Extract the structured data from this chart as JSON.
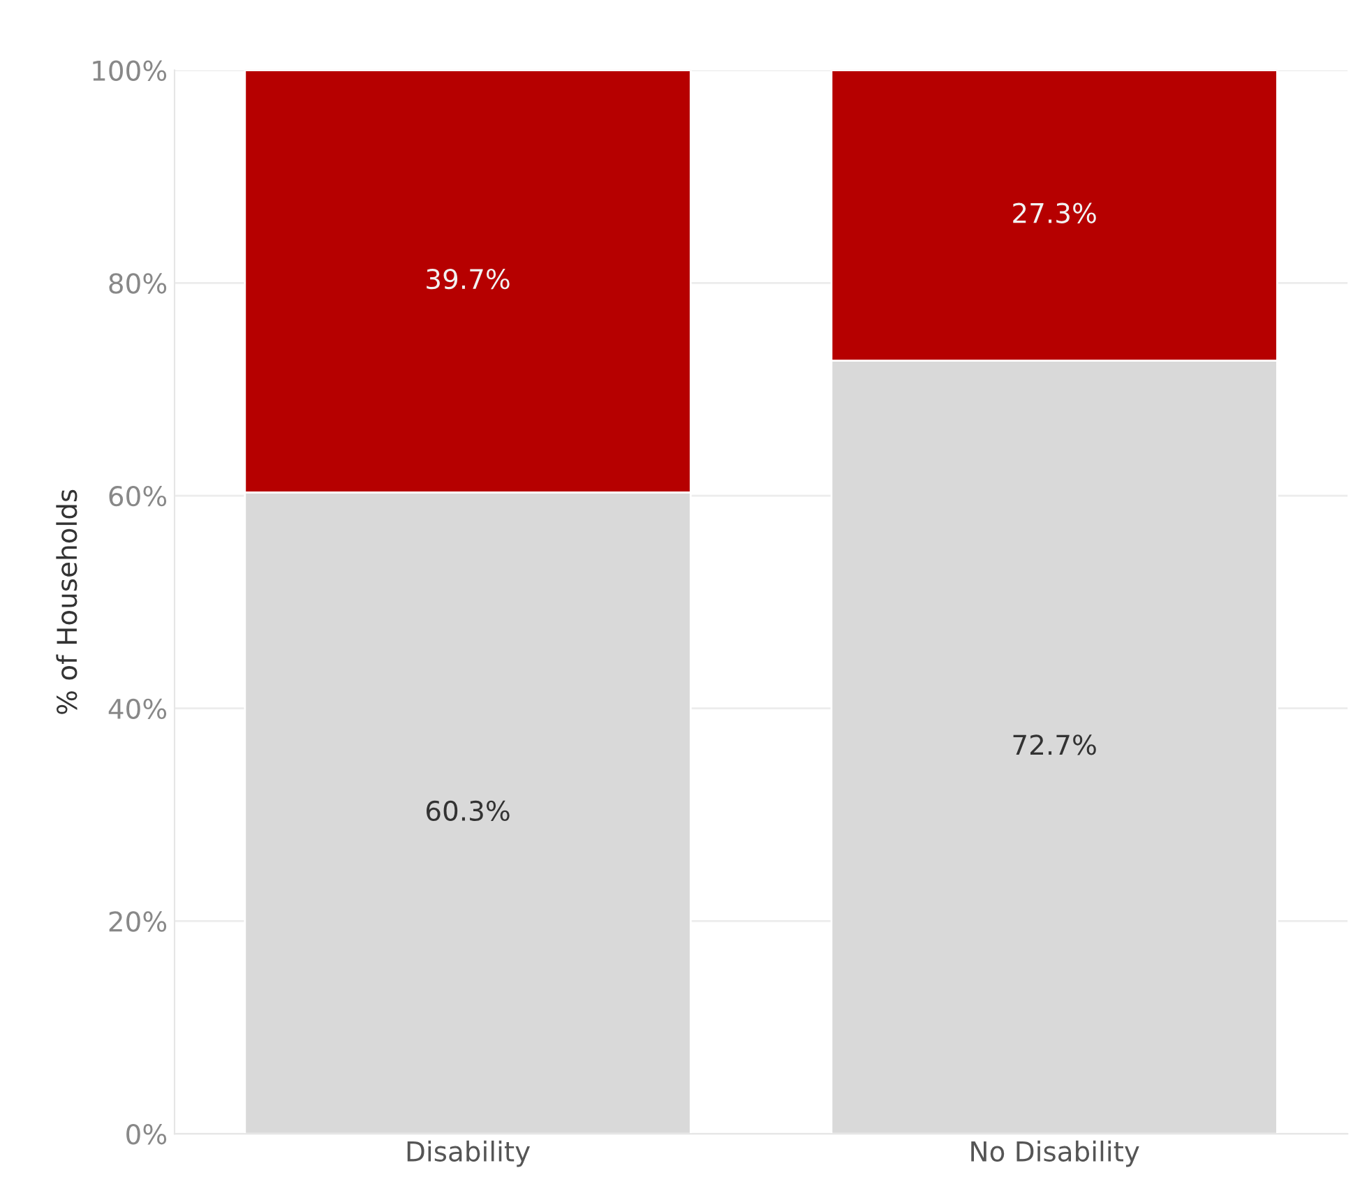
{
  "chart_data": {
    "type": "bar",
    "stacked": true,
    "ylabel": "% of Households",
    "categories": [
      "Disability",
      "No Disability"
    ],
    "series": [
      {
        "color": "#d9d9d9",
        "values": [
          60.3,
          72.7
        ],
        "value_labels": [
          "60.3%",
          "72.7%"
        ]
      },
      {
        "color": "#b60000",
        "values": [
          39.7,
          27.3
        ],
        "value_labels": [
          "39.7%",
          "27.3%"
        ]
      }
    ],
    "ylim": [
      0,
      100
    ],
    "yticks": [
      {
        "value": 0,
        "label": "0%"
      },
      {
        "value": 20,
        "label": "20%"
      },
      {
        "value": 40,
        "label": "40%"
      },
      {
        "value": 60,
        "label": "60%"
      },
      {
        "value": 80,
        "label": "80%"
      },
      {
        "value": 100,
        "label": "100%"
      }
    ],
    "grid": "y",
    "legend": false
  }
}
